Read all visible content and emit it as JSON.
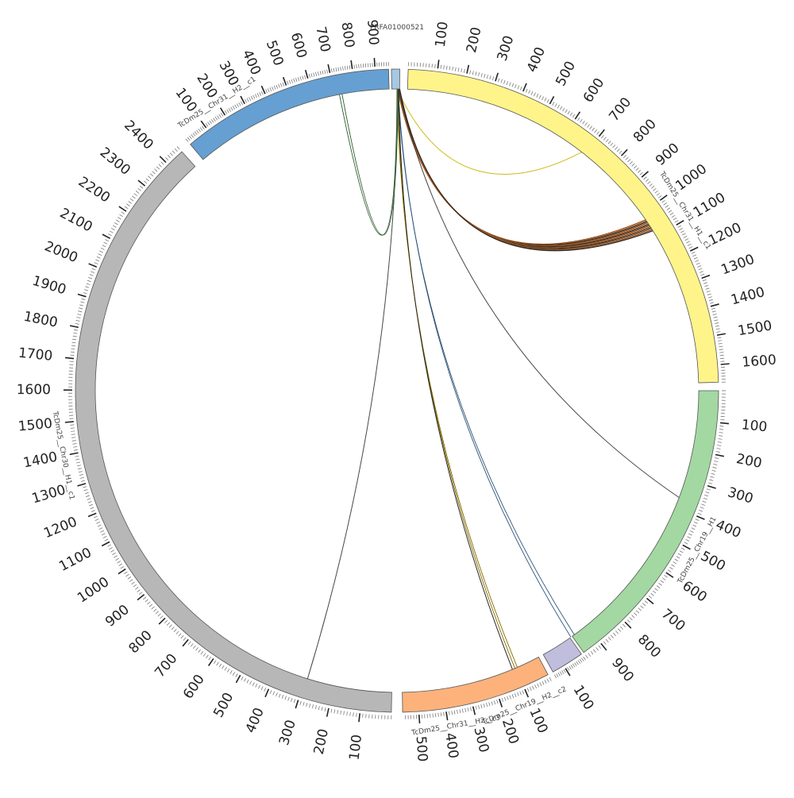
{
  "chart_data": {
    "type": "chord",
    "segments": [
      {
        "name": "PRFA01000521",
        "color": "#a6c8e3",
        "label_mode": "horizontal",
        "ticks": []
      },
      {
        "name": "TcDm25__Chr31__H1__c1",
        "color": "#fff48a",
        "label_mode": "tangent",
        "ticks": [
          "100",
          "200",
          "300",
          "400",
          "500",
          "600",
          "700",
          "800",
          "900",
          "1000",
          "1100",
          "1200",
          "1300",
          "1400",
          "1500",
          "1600"
        ]
      },
      {
        "name": "TcDm25__Chr19__H1",
        "color": "#a3d8a2",
        "label_mode": "tangent",
        "ticks": [
          "100",
          "200",
          "300",
          "400",
          "500",
          "600",
          "700",
          "800",
          "900"
        ]
      },
      {
        "name": "TcDm25__Chr19__H2__c2",
        "color": "#c0bedc",
        "label_mode": "tangent",
        "ticks": [
          "100"
        ]
      },
      {
        "name": "TcDm25__Chr31__H2__c3",
        "color": "#fdb27c",
        "label_mode": "tangent",
        "ticks": [
          "100",
          "200",
          "300",
          "400",
          "500"
        ]
      },
      {
        "name": "TcDm25__Chr30__H1__c1",
        "color": "#b7b7b7",
        "label_mode": "tangent",
        "ticks": [
          "100",
          "200",
          "300",
          "400",
          "500",
          "600",
          "700",
          "800",
          "900",
          "1000",
          "1100",
          "1200",
          "1300",
          "1400",
          "1500",
          "1600",
          "1700",
          "1800",
          "1900",
          "2000",
          "2100",
          "2200",
          "2300",
          "2400"
        ]
      },
      {
        "name": "TcDm25__Chr31__H2__c1",
        "color": "#669fd1",
        "label_mode": "tangent",
        "ticks": [
          "100",
          "200",
          "300",
          "400",
          "500",
          "600",
          "700",
          "800",
          "900"
        ]
      }
    ],
    "links": [
      {
        "from": "PRFA01000521",
        "to": "TcDm25__Chr31__H1__c1",
        "count": 1,
        "color": "#c9b400"
      },
      {
        "from": "PRFA01000521",
        "to": "TcDm25__Chr31__H1__c1",
        "count": 12,
        "color": "#e07a2e"
      },
      {
        "from": "PRFA01000521",
        "to": "TcDm25__Chr19__H1",
        "count": 1,
        "color": "#333333"
      },
      {
        "from": "PRFA01000521",
        "to": "TcDm25__Chr19__H2__c2",
        "count": 2,
        "color": "#4a86c0"
      },
      {
        "from": "PRFA01000521",
        "to": "TcDm25__Chr31__H2__c3",
        "count": 3,
        "color": "#d6b000"
      },
      {
        "from": "PRFA01000521",
        "to": "TcDm25__Chr30__H1__c1",
        "count": 1,
        "color": "#333333"
      },
      {
        "from": "PRFA01000521",
        "to": "TcDm25__Chr31__H2__c1",
        "count": 2,
        "color": "#4a9a4a"
      }
    ]
  }
}
